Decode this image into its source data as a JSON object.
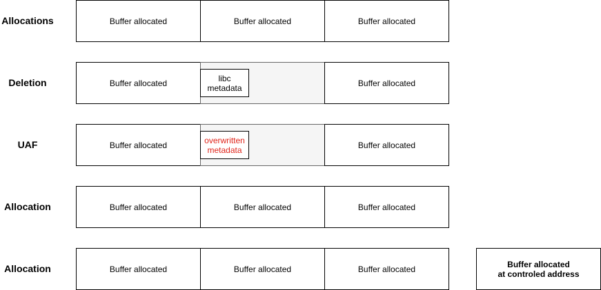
{
  "rows": [
    {
      "label": "Allocations",
      "cells": [
        "Buffer allocated",
        "Buffer allocated",
        "Buffer allocated"
      ]
    },
    {
      "label": "Deletion",
      "cells": [
        "Buffer allocated",
        "",
        "Buffer allocated"
      ],
      "metadata": "libc\nmetadata"
    },
    {
      "label": "UAF",
      "cells": [
        "Buffer allocated",
        "",
        "Buffer allocated"
      ],
      "metadata": "overwritten\nmetadata"
    },
    {
      "label": "Allocation",
      "cells": [
        "Buffer allocated",
        "Buffer allocated",
        "Buffer allocated"
      ]
    },
    {
      "label": "Allocation",
      "cells": [
        "Buffer allocated",
        "Buffer allocated",
        "Buffer allocated"
      ]
    }
  ],
  "target_buffer": "Buffer allocated\nat controled address",
  "colors": {
    "freed_fill": "#f5f5f5",
    "overwritten_text": "#e0251b"
  }
}
